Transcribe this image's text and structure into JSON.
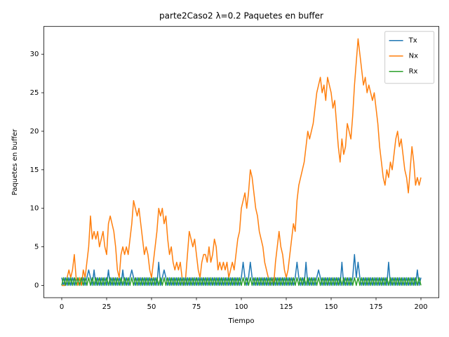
{
  "chart_data": {
    "type": "line",
    "title": "parte2Caso2 λ=0.2 Paquetes en buffer",
    "x_label": "Tiempo",
    "y_label": "Paquetes en buffer",
    "xlim": [
      -10,
      210
    ],
    "ylim": [
      -1.6,
      33.6
    ],
    "xticks": [
      0,
      25,
      50,
      75,
      100,
      125,
      150,
      175,
      200
    ],
    "yticks": [
      0,
      5,
      10,
      15,
      20,
      25,
      30
    ],
    "legend": "upper right",
    "grid": false,
    "x": [
      0,
      1,
      2,
      3,
      4,
      5,
      6,
      7,
      8,
      9,
      10,
      11,
      12,
      13,
      14,
      15,
      16,
      17,
      18,
      19,
      20,
      21,
      22,
      23,
      24,
      25,
      26,
      27,
      28,
      29,
      30,
      31,
      32,
      33,
      34,
      35,
      36,
      37,
      38,
      39,
      40,
      41,
      42,
      43,
      44,
      45,
      46,
      47,
      48,
      49,
      50,
      51,
      52,
      53,
      54,
      55,
      56,
      57,
      58,
      59,
      60,
      61,
      62,
      63,
      64,
      65,
      66,
      67,
      68,
      69,
      70,
      71,
      72,
      73,
      74,
      75,
      76,
      77,
      78,
      79,
      80,
      81,
      82,
      83,
      84,
      85,
      86,
      87,
      88,
      89,
      90,
      91,
      92,
      93,
      94,
      95,
      96,
      97,
      98,
      99,
      100,
      101,
      102,
      103,
      104,
      105,
      106,
      107,
      108,
      109,
      110,
      111,
      112,
      113,
      114,
      115,
      116,
      117,
      118,
      119,
      120,
      121,
      122,
      123,
      124,
      125,
      126,
      127,
      128,
      129,
      130,
      131,
      132,
      133,
      134,
      135,
      136,
      137,
      138,
      139,
      140,
      141,
      142,
      143,
      144,
      145,
      146,
      147,
      148,
      149,
      150,
      151,
      152,
      153,
      154,
      155,
      156,
      157,
      158,
      159,
      160,
      161,
      162,
      163,
      164,
      165,
      166,
      167,
      168,
      169,
      170,
      171,
      172,
      173,
      174,
      175,
      176,
      177,
      178,
      179,
      180,
      181,
      182,
      183,
      184,
      185,
      186,
      187,
      188,
      189,
      190,
      191,
      192,
      193,
      194,
      195,
      196,
      197,
      198,
      199,
      200
    ],
    "series": [
      {
        "name": "Tx",
        "color": "#1f77b4",
        "values": [
          1,
          0,
          1,
          0,
          1,
          0,
          1,
          0,
          1,
          0,
          1,
          0,
          1,
          0,
          1,
          2,
          1,
          0,
          2,
          0,
          1,
          0,
          1,
          0,
          1,
          0,
          2,
          0,
          1,
          0,
          1,
          0,
          1,
          0,
          2,
          0,
          1,
          0,
          1,
          2,
          1,
          0,
          1,
          0,
          1,
          0,
          1,
          0,
          1,
          0,
          1,
          0,
          1,
          0,
          3,
          0,
          1,
          2,
          1,
          0,
          1,
          0,
          1,
          0,
          1,
          0,
          1,
          0,
          1,
          0,
          1,
          0,
          1,
          0,
          1,
          0,
          1,
          0,
          1,
          0,
          1,
          0,
          1,
          0,
          1,
          0,
          1,
          0,
          1,
          0,
          1,
          0,
          1,
          0,
          1,
          0,
          1,
          0,
          1,
          0,
          1,
          3,
          1,
          0,
          1,
          3,
          1,
          0,
          1,
          0,
          1,
          0,
          1,
          0,
          1,
          0,
          1,
          0,
          1,
          0,
          1,
          0,
          1,
          0,
          1,
          0,
          1,
          0,
          1,
          0,
          1,
          3,
          1,
          0,
          1,
          0,
          3,
          0,
          1,
          0,
          1,
          0,
          1,
          2,
          1,
          0,
          1,
          0,
          1,
          0,
          1,
          0,
          1,
          0,
          1,
          0,
          3,
          0,
          1,
          0,
          1,
          0,
          1,
          4,
          1,
          3,
          1,
          0,
          1,
          0,
          1,
          0,
          1,
          0,
          1,
          0,
          1,
          0,
          1,
          0,
          1,
          0,
          3,
          0,
          1,
          0,
          1,
          0,
          1,
          0,
          1,
          0,
          1,
          0,
          1,
          0,
          1,
          0,
          2,
          0,
          1
        ]
      },
      {
        "name": "Nx",
        "color": "#ff7f0e",
        "values": [
          0,
          0,
          0,
          1,
          2,
          1,
          2,
          4,
          1,
          0,
          1,
          0,
          2,
          1,
          3,
          5,
          9,
          6,
          7,
          6,
          7,
          5,
          6,
          7,
          5,
          4,
          8,
          9,
          8,
          7,
          5,
          2,
          1,
          4,
          5,
          4,
          5,
          4,
          6,
          8,
          11,
          10,
          9,
          10,
          8,
          6,
          4,
          5,
          4,
          2,
          1,
          3,
          5,
          7,
          10,
          9,
          10,
          8,
          9,
          6,
          4,
          5,
          3,
          2,
          3,
          2,
          3,
          1,
          0,
          1,
          4,
          7,
          6,
          5,
          6,
          4,
          2,
          1,
          3,
          4,
          4,
          3,
          5,
          3,
          4,
          6,
          5,
          2,
          3,
          2,
          3,
          2,
          3,
          1,
          2,
          3,
          2,
          4,
          6,
          7,
          10,
          11,
          12,
          10,
          12,
          15,
          14,
          12,
          10,
          9,
          7,
          6,
          5,
          3,
          2,
          1,
          0,
          1,
          0,
          3,
          5,
          7,
          5,
          4,
          2,
          1,
          2,
          4,
          6,
          8,
          7,
          11,
          13,
          14,
          15,
          16,
          18,
          20,
          19,
          20,
          21,
          23,
          25,
          26,
          27,
          25,
          26,
          24,
          27,
          26,
          25,
          23,
          24,
          21,
          18,
          16,
          19,
          17,
          18,
          21,
          20,
          19,
          22,
          26,
          29,
          32,
          30,
          28,
          26,
          27,
          25,
          26,
          25,
          24,
          25,
          23,
          21,
          18,
          16,
          14,
          13,
          15,
          14,
          16,
          15,
          17,
          19,
          20,
          18,
          19,
          17,
          15,
          14,
          12,
          15,
          18,
          16,
          13,
          14,
          13,
          14
        ]
      },
      {
        "name": "Rx",
        "color": "#2ca02c",
        "values": [
          0,
          1,
          0,
          1,
          0,
          1,
          0,
          1,
          0,
          1,
          0,
          1,
          0,
          1,
          0,
          1,
          0,
          1,
          0,
          1,
          0,
          1,
          0,
          1,
          0,
          1,
          0,
          1,
          0,
          1,
          0,
          1,
          0,
          1,
          0,
          1,
          0,
          1,
          0,
          1,
          0,
          1,
          0,
          1,
          0,
          1,
          0,
          1,
          0,
          1,
          0,
          1,
          0,
          1,
          0,
          1,
          0,
          1,
          0,
          1,
          0,
          1,
          0,
          1,
          0,
          1,
          0,
          1,
          0,
          1,
          0,
          1,
          0,
          1,
          0,
          1,
          0,
          1,
          0,
          1,
          0,
          1,
          0,
          1,
          0,
          1,
          0,
          1,
          0,
          1,
          0,
          1,
          0,
          1,
          0,
          1,
          0,
          1,
          0,
          1,
          0,
          1,
          0,
          1,
          0,
          1,
          0,
          1,
          0,
          1,
          0,
          1,
          0,
          1,
          0,
          1,
          0,
          1,
          0,
          1,
          0,
          1,
          0,
          1,
          0,
          1,
          0,
          1,
          0,
          1,
          0,
          1,
          0,
          1,
          0,
          1,
          0,
          1,
          0,
          1,
          0,
          1,
          0,
          1,
          0,
          1,
          0,
          1,
          0,
          1,
          0,
          1,
          0,
          1,
          0,
          1,
          0,
          1,
          0,
          1,
          0,
          1,
          0,
          1,
          0,
          1,
          0,
          1,
          0,
          1,
          0,
          1,
          0,
          1,
          0,
          1,
          0,
          1,
          0,
          1,
          0,
          1,
          0,
          1,
          0,
          1,
          0,
          1,
          0,
          1,
          0,
          1,
          0,
          1,
          0,
          1,
          0,
          1,
          0,
          1,
          0
        ]
      }
    ]
  }
}
